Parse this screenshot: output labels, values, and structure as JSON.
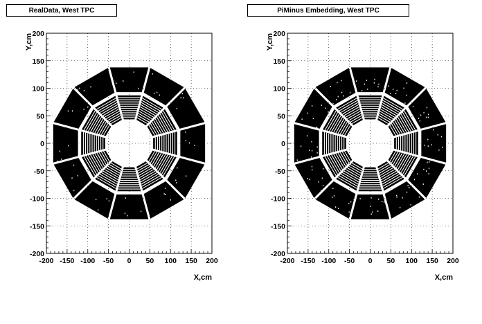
{
  "panels": [
    {
      "title": "RealData, West TPC"
    },
    {
      "title": "PiMinus Embedding, West TPC"
    }
  ],
  "footer_text": "",
  "chart_data": [
    {
      "type": "scatter",
      "title": "RealData, West TPC",
      "xlabel": "X,cm",
      "ylabel": "Y,cm",
      "xlim": [
        -200,
        200
      ],
      "ylim": [
        -200,
        200
      ],
      "xticks": [
        -200,
        -150,
        -100,
        -50,
        0,
        50,
        100,
        150,
        200
      ],
      "yticks": [
        -200,
        -150,
        -100,
        -50,
        0,
        50,
        100,
        150,
        200
      ],
      "grid": true,
      "sectors": 12,
      "inner_radius_cm": [
        60,
        120
      ],
      "outer_radius_cm": [
        128,
        190
      ]
    },
    {
      "type": "scatter",
      "title": "PiMinus Embedding, West TPC",
      "xlabel": "X,cm",
      "ylabel": "Y,cm",
      "xlim": [
        -200,
        200
      ],
      "ylim": [
        -200,
        200
      ],
      "xticks": [
        -200,
        -150,
        -100,
        -50,
        0,
        50,
        100,
        150,
        200
      ],
      "yticks": [
        -200,
        -150,
        -100,
        -50,
        0,
        50,
        100,
        150,
        200
      ],
      "grid": true,
      "sectors": 12,
      "inner_radius_cm": [
        60,
        120
      ],
      "outer_radius_cm": [
        128,
        190
      ]
    }
  ]
}
